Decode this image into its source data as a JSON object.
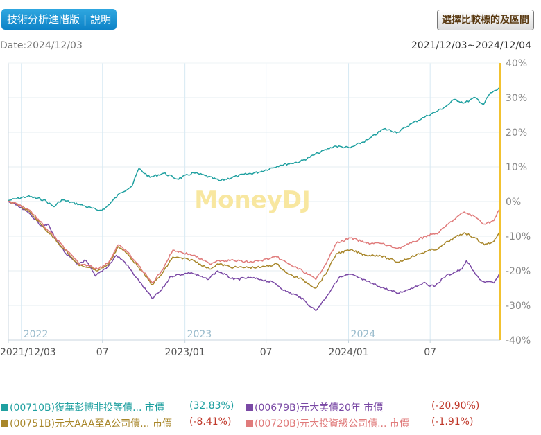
{
  "header": {
    "tab_label": "技術分析進階版",
    "help_label": "說明",
    "compare_button": "選擇比較標的及區間",
    "date_text": "Date:2024/12/03",
    "range_text": "2021/12/03~2024/12/04"
  },
  "chart_data": {
    "type": "line",
    "watermark": "MoneyDJ",
    "x_range": [
      "2021-12-03",
      "2024-12-04"
    ],
    "ylim": [
      -40,
      40
    ],
    "yticks": [
      "40%",
      "30%",
      "20%",
      "10%",
      "0%",
      "-10%",
      "-20%",
      "-30%",
      "-40%"
    ],
    "xticks": [
      "2021/12/03",
      "07",
      "2023/01",
      "07",
      "2024/01",
      "07"
    ],
    "year_labels": [
      "2022",
      "2023",
      "2024"
    ],
    "grid": true,
    "series": [
      {
        "name": "(00710B)復華彭博非投等債... 市價",
        "color": "#1fa0a0",
        "change": "(32.83%)",
        "change_color": "#1fa0a0",
        "points": [
          [
            "2021-12-03",
            0.3
          ],
          [
            "2022-01-15",
            1.5
          ],
          [
            "2022-02-20",
            0.5
          ],
          [
            "2022-03-15",
            -1.5
          ],
          [
            "2022-04-01",
            0.5
          ],
          [
            "2022-05-10",
            -0.8
          ],
          [
            "2022-06-20",
            -2.5
          ],
          [
            "2022-07-05",
            -2.2
          ],
          [
            "2022-08-10",
            2.5
          ],
          [
            "2022-09-05",
            4.5
          ],
          [
            "2022-09-20",
            9.5
          ],
          [
            "2022-10-15",
            7.0
          ],
          [
            "2022-11-15",
            8.2
          ],
          [
            "2022-12-15",
            6.5
          ],
          [
            "2023-01-20",
            8.3
          ],
          [
            "2023-02-15",
            7.5
          ],
          [
            "2023-03-20",
            6.0
          ],
          [
            "2023-05-01",
            7.5
          ],
          [
            "2023-06-15",
            8.5
          ],
          [
            "2023-08-01",
            10.5
          ],
          [
            "2023-09-15",
            11.5
          ],
          [
            "2023-10-25",
            14.0
          ],
          [
            "2023-12-01",
            16.0
          ],
          [
            "2024-01-05",
            15.5
          ],
          [
            "2024-02-15",
            18.0
          ],
          [
            "2024-03-20",
            21.0
          ],
          [
            "2024-04-20",
            20.0
          ],
          [
            "2024-05-20",
            22.5
          ],
          [
            "2024-06-20",
            24.5
          ],
          [
            "2024-07-15",
            26.0
          ],
          [
            "2024-08-05",
            27.5
          ],
          [
            "2024-08-25",
            29.5
          ],
          [
            "2024-09-15",
            28.5
          ],
          [
            "2024-10-10",
            30.0
          ],
          [
            "2024-10-28",
            28.0
          ],
          [
            "2024-11-10",
            31.0
          ],
          [
            "2024-12-04",
            32.8
          ]
        ]
      },
      {
        "name": "(00679B)元大美債20年 市價",
        "color": "#7a49a5",
        "change": "(-20.90%)",
        "change_color": "#c0392b",
        "points": [
          [
            "2021-12-03",
            0.0
          ],
          [
            "2021-12-20",
            -1.0
          ],
          [
            "2022-01-20",
            -3.5
          ],
          [
            "2022-02-15",
            -7.0
          ],
          [
            "2022-03-01",
            -6.5
          ],
          [
            "2022-03-15",
            -10.0
          ],
          [
            "2022-04-10",
            -15.0
          ],
          [
            "2022-05-05",
            -18.0
          ],
          [
            "2022-05-25",
            -17.0
          ],
          [
            "2022-06-15",
            -21.5
          ],
          [
            "2022-07-15",
            -18.5
          ],
          [
            "2022-08-01",
            -15.5
          ],
          [
            "2022-08-20",
            -17.5
          ],
          [
            "2022-09-15",
            -22.0
          ],
          [
            "2022-10-20",
            -28.0
          ],
          [
            "2022-11-10",
            -25.5
          ],
          [
            "2022-12-01",
            -21.5
          ],
          [
            "2023-01-15",
            -20.5
          ],
          [
            "2023-02-20",
            -22.5
          ],
          [
            "2023-03-15",
            -20.0
          ],
          [
            "2023-04-20",
            -22.5
          ],
          [
            "2023-05-25",
            -22.0
          ],
          [
            "2023-06-20",
            -22.5
          ],
          [
            "2023-07-20",
            -23.5
          ],
          [
            "2023-08-15",
            -26.0
          ],
          [
            "2023-09-15",
            -27.5
          ],
          [
            "2023-10-10",
            -30.5
          ],
          [
            "2023-10-20",
            -31.5
          ],
          [
            "2023-11-15",
            -27.0
          ],
          [
            "2023-12-10",
            -22.0
          ],
          [
            "2024-01-05",
            -21.0
          ],
          [
            "2024-02-10",
            -23.0
          ],
          [
            "2024-03-10",
            -24.5
          ],
          [
            "2024-04-20",
            -26.5
          ],
          [
            "2024-05-20",
            -25.0
          ],
          [
            "2024-06-15",
            -23.5
          ],
          [
            "2024-07-10",
            -24.5
          ],
          [
            "2024-08-05",
            -21.5
          ],
          [
            "2024-09-10",
            -19.5
          ],
          [
            "2024-09-20",
            -17.0
          ],
          [
            "2024-10-10",
            -21.0
          ],
          [
            "2024-10-25",
            -23.0
          ],
          [
            "2024-11-20",
            -23.5
          ],
          [
            "2024-12-04",
            -20.9
          ]
        ]
      },
      {
        "name": "(00751B)元大AAA至A公司債... 市價",
        "color": "#a8862a",
        "change": "(-8.41%)",
        "change_color": "#c0392b",
        "points": [
          [
            "2021-12-03",
            0.0
          ],
          [
            "2021-12-20",
            -0.5
          ],
          [
            "2022-01-20",
            -3.0
          ],
          [
            "2022-02-20",
            -7.5
          ],
          [
            "2022-03-15",
            -10.5
          ],
          [
            "2022-04-15",
            -15.0
          ],
          [
            "2022-05-10",
            -18.5
          ],
          [
            "2022-06-05",
            -19.0
          ],
          [
            "2022-06-20",
            -20.0
          ],
          [
            "2022-07-15",
            -18.0
          ],
          [
            "2022-08-05",
            -13.0
          ],
          [
            "2022-08-25",
            -15.0
          ],
          [
            "2022-09-20",
            -19.0
          ],
          [
            "2022-10-20",
            -24.0
          ],
          [
            "2022-11-10",
            -21.0
          ],
          [
            "2022-12-05",
            -16.0
          ],
          [
            "2023-01-20",
            -17.0
          ],
          [
            "2023-02-25",
            -19.5
          ],
          [
            "2023-03-15",
            -18.0
          ],
          [
            "2023-04-20",
            -19.0
          ],
          [
            "2023-05-25",
            -19.0
          ],
          [
            "2023-06-20",
            -19.0
          ],
          [
            "2023-07-25",
            -18.0
          ],
          [
            "2023-08-20",
            -21.0
          ],
          [
            "2023-09-20",
            -22.5
          ],
          [
            "2023-10-20",
            -25.0
          ],
          [
            "2023-11-15",
            -20.0
          ],
          [
            "2023-12-05",
            -15.0
          ],
          [
            "2024-01-05",
            -14.0
          ],
          [
            "2024-02-10",
            -15.5
          ],
          [
            "2024-03-10",
            -15.5
          ],
          [
            "2024-04-20",
            -17.5
          ],
          [
            "2024-05-20",
            -16.0
          ],
          [
            "2024-06-20",
            -14.5
          ],
          [
            "2024-07-20",
            -13.5
          ],
          [
            "2024-08-10",
            -11.5
          ],
          [
            "2024-09-15",
            -9.0
          ],
          [
            "2024-10-10",
            -10.5
          ],
          [
            "2024-10-30",
            -12.5
          ],
          [
            "2024-11-20",
            -11.5
          ],
          [
            "2024-12-04",
            -8.4
          ]
        ]
      },
      {
        "name": "(00720B)元大投資級公司債... 市價",
        "color": "#e07b7b",
        "change": "(-1.91%)",
        "change_color": "#c0392b",
        "points": [
          [
            "2021-12-03",
            0.0
          ],
          [
            "2021-12-20",
            -0.5
          ],
          [
            "2022-01-20",
            -2.5
          ],
          [
            "2022-02-20",
            -7.0
          ],
          [
            "2022-03-15",
            -10.0
          ],
          [
            "2022-04-15",
            -14.5
          ],
          [
            "2022-05-10",
            -18.0
          ],
          [
            "2022-06-05",
            -18.5
          ],
          [
            "2022-06-20",
            -19.5
          ],
          [
            "2022-07-15",
            -17.5
          ],
          [
            "2022-08-05",
            -12.5
          ],
          [
            "2022-08-25",
            -14.5
          ],
          [
            "2022-09-20",
            -18.5
          ],
          [
            "2022-10-20",
            -23.5
          ],
          [
            "2022-11-10",
            -20.0
          ],
          [
            "2022-12-05",
            -14.0
          ],
          [
            "2023-01-20",
            -15.5
          ],
          [
            "2023-02-25",
            -18.0
          ],
          [
            "2023-03-15",
            -17.0
          ],
          [
            "2023-04-20",
            -17.0
          ],
          [
            "2023-05-25",
            -17.5
          ],
          [
            "2023-06-20",
            -17.0
          ],
          [
            "2023-07-25",
            -16.0
          ],
          [
            "2023-08-20",
            -18.0
          ],
          [
            "2023-09-20",
            -20.0
          ],
          [
            "2023-10-20",
            -22.5
          ],
          [
            "2023-11-15",
            -17.0
          ],
          [
            "2023-12-05",
            -12.0
          ],
          [
            "2024-01-05",
            -10.5
          ],
          [
            "2024-02-10",
            -12.0
          ],
          [
            "2024-03-10",
            -12.0
          ],
          [
            "2024-04-20",
            -13.5
          ],
          [
            "2024-05-20",
            -12.0
          ],
          [
            "2024-06-20",
            -10.0
          ],
          [
            "2024-07-20",
            -9.0
          ],
          [
            "2024-08-10",
            -6.5
          ],
          [
            "2024-09-15",
            -3.0
          ],
          [
            "2024-10-10",
            -4.5
          ],
          [
            "2024-10-30",
            -6.5
          ],
          [
            "2024-11-20",
            -5.5
          ],
          [
            "2024-12-04",
            -1.9
          ]
        ]
      }
    ]
  }
}
